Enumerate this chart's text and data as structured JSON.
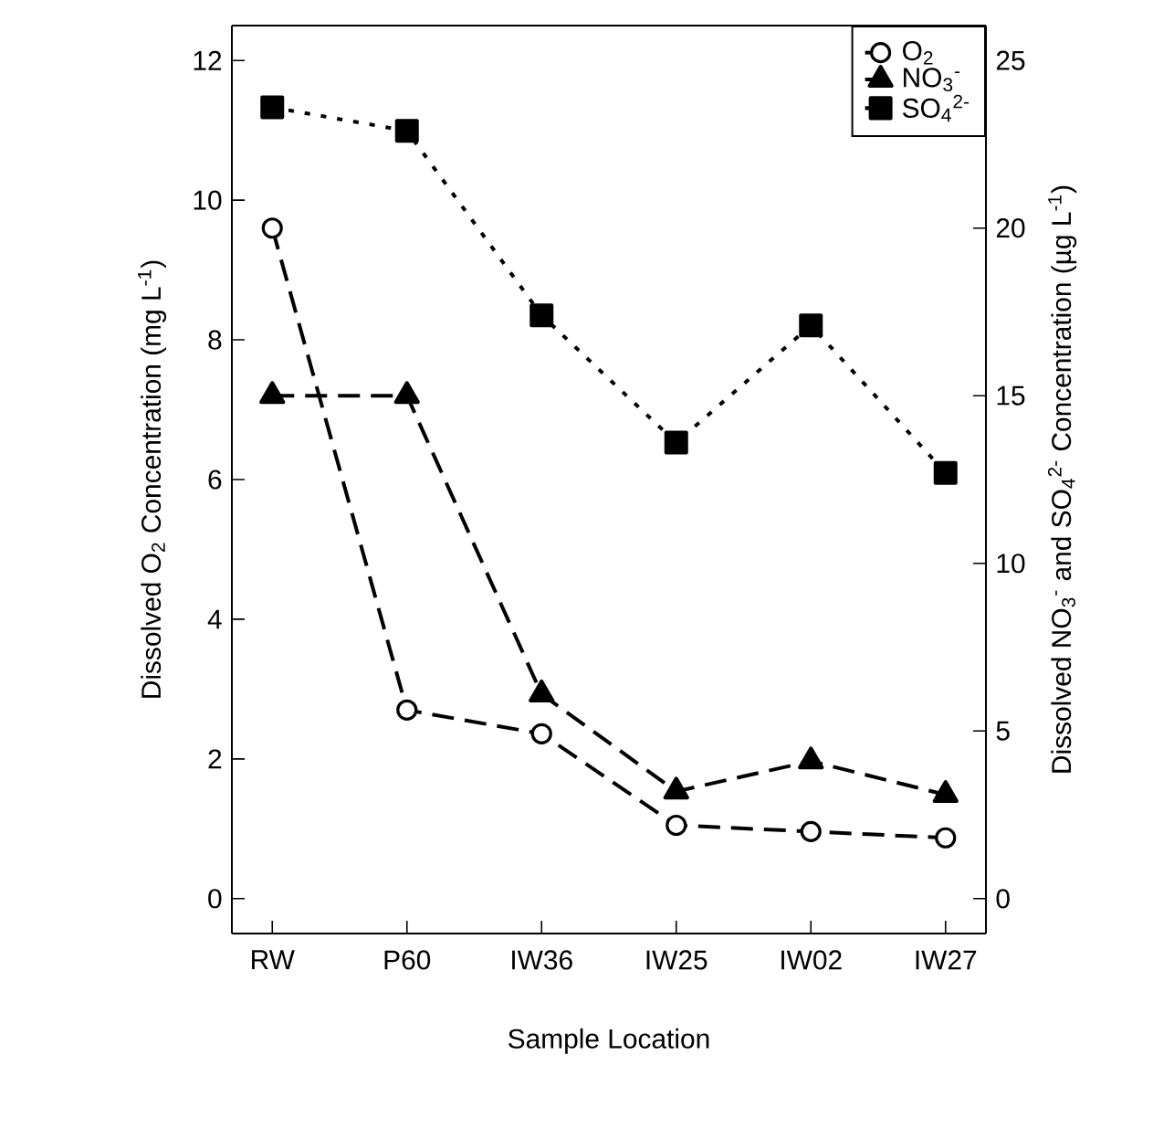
{
  "chart_data": {
    "type": "line",
    "xlabel": "Sample Location",
    "ylabel": "Dissolved O$_{2}$ Concentration (mg L$^{-1}$)",
    "y2label": "Dissolved NO$_{3}$$^{-}$ and SO$_{4}$$^{2-}$ Concentration (µg L$^{-1}$)",
    "categories": [
      "RW",
      "P60",
      "IW36",
      "IW25",
      "IW02",
      "IW27"
    ],
    "series": [
      {
        "name": "O$_{2}$",
        "color": "#000000",
        "marker": "circle",
        "line_style": "dashed",
        "values": [
          9.6,
          2.7,
          2.36,
          1.05,
          0.96,
          0.87
        ]
      },
      {
        "name": "NO$_{3}$$^{-}$",
        "color": "#000000",
        "marker": "triangle",
        "line_style": "dashed",
        "axis": "y2",
        "values": [
          15.0,
          15.0,
          6.1,
          3.2,
          4.1,
          3.1
        ]
      },
      {
        "name": "SO$_{4}$$^{2-}$",
        "color": "#000000",
        "marker": "square",
        "line_style": "dotted",
        "axis": "y2",
        "values": [
          23.6,
          22.9,
          17.4,
          13.6,
          17.1,
          12.7
        ]
      }
    ],
    "ylim": [
      -0.5,
      12.5
    ],
    "yticks": [
      0,
      2,
      4,
      6,
      8,
      10,
      12
    ],
    "y2lim": [
      -1.04,
      26.04
    ],
    "y2ticks": [
      0,
      5,
      10,
      15,
      20,
      25
    ],
    "legend": "top right",
    "grid": false
  }
}
